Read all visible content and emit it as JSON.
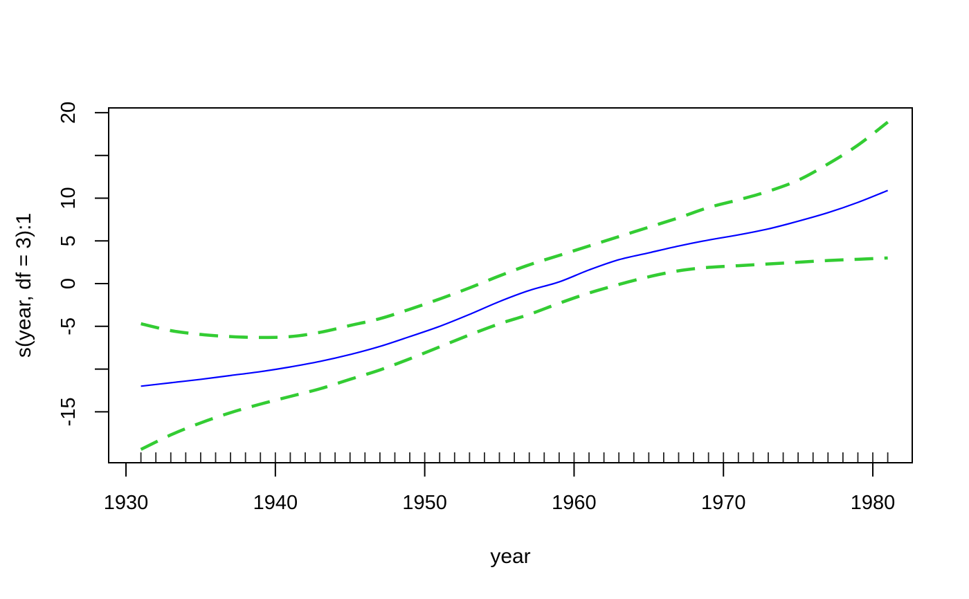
{
  "chart_data": {
    "type": "line",
    "title": "",
    "xlabel": "year",
    "ylabel": "s(year, df = 3):1",
    "legend": "none",
    "grid": false,
    "x_range": [
      1928.84,
      1982.64
    ],
    "y_range": [
      -20.96,
      20.56
    ],
    "x_ticks": [
      {
        "v": 1930,
        "label": "1930"
      },
      {
        "v": 1940,
        "label": "1940"
      },
      {
        "v": 1950,
        "label": "1950"
      },
      {
        "v": 1960,
        "label": "1960"
      },
      {
        "v": 1970,
        "label": "1970"
      },
      {
        "v": 1980,
        "label": "1980"
      }
    ],
    "y_ticks": [
      {
        "v": 20,
        "label": "20"
      },
      {
        "v": 15,
        "label": ""
      },
      {
        "v": 10,
        "label": "10"
      },
      {
        "v": 5,
        "label": "5"
      },
      {
        "v": 0,
        "label": "0"
      },
      {
        "v": -5,
        "label": "-5"
      },
      {
        "v": -10,
        "label": ""
      },
      {
        "v": -15,
        "label": "-15"
      }
    ],
    "x": [
      1931,
      1933,
      1935,
      1937,
      1939,
      1941,
      1943,
      1945,
      1947,
      1949,
      1951,
      1953,
      1955,
      1957,
      1959,
      1961,
      1963,
      1965,
      1967,
      1969,
      1971,
      1973,
      1975,
      1977,
      1979,
      1981
    ],
    "series": [
      {
        "name": "fitted-smooth",
        "color": "#0000ff",
        "style": "solid",
        "width": 2.2,
        "y": [
          -12.0,
          -11.6,
          -11.2,
          -10.75,
          -10.3,
          -9.75,
          -9.1,
          -8.3,
          -7.35,
          -6.2,
          -5.0,
          -3.6,
          -2.1,
          -0.8,
          0.2,
          1.6,
          2.8,
          3.6,
          4.4,
          5.1,
          5.7,
          6.4,
          7.3,
          8.3,
          9.5,
          10.9
        ]
      },
      {
        "name": "upper-confidence-band",
        "color": "#33cc33",
        "style": "dashed",
        "width": 4.5,
        "y": [
          -4.7,
          -5.5,
          -5.95,
          -6.2,
          -6.3,
          -6.2,
          -5.7,
          -4.9,
          -4.1,
          -3.0,
          -1.8,
          -0.5,
          0.9,
          2.2,
          3.3,
          4.4,
          5.5,
          6.6,
          7.7,
          8.9,
          9.8,
          10.8,
          12.1,
          14.0,
          16.2,
          18.9
        ]
      },
      {
        "name": "lower-confidence-band",
        "color": "#33cc33",
        "style": "dashed",
        "width": 4.5,
        "y": [
          -19.4,
          -17.7,
          -16.3,
          -15.1,
          -14.1,
          -13.2,
          -12.3,
          -11.2,
          -10.1,
          -8.8,
          -7.4,
          -6.0,
          -4.7,
          -3.6,
          -2.3,
          -1.1,
          -0.1,
          0.8,
          1.5,
          1.9,
          2.1,
          2.3,
          2.5,
          2.7,
          2.85,
          3.0
        ]
      }
    ],
    "rug_years": [
      1931,
      1932,
      1933,
      1934,
      1935,
      1936,
      1937,
      1938,
      1939,
      1940,
      1941,
      1942,
      1943,
      1944,
      1945,
      1946,
      1947,
      1948,
      1949,
      1950,
      1951,
      1952,
      1953,
      1954,
      1955,
      1956,
      1957,
      1958,
      1959,
      1960,
      1961,
      1962,
      1963,
      1964,
      1965,
      1966,
      1967,
      1968,
      1969,
      1970,
      1971,
      1972,
      1973,
      1974,
      1975,
      1976,
      1977,
      1978,
      1979,
      1980,
      1981
    ],
    "colors": {
      "axis": "#000000",
      "fit_line": "#0000ff",
      "ci_line": "#33cc33",
      "rug": "#222222"
    },
    "dash_pattern": "27 16"
  }
}
